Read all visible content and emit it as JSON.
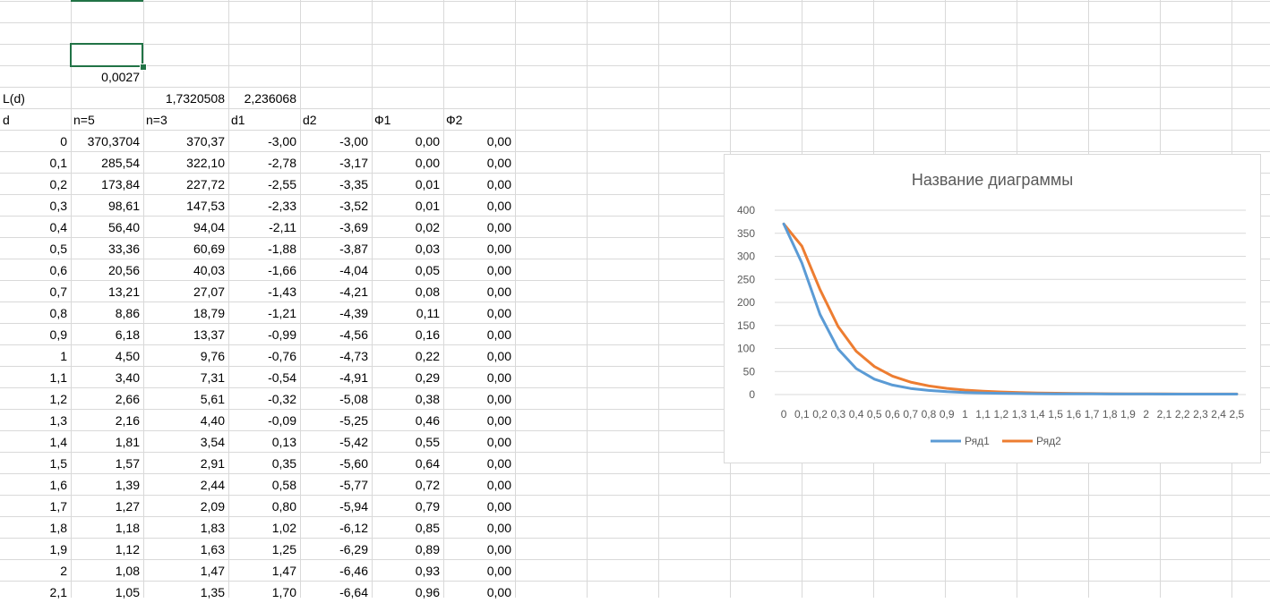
{
  "sheet": {
    "top_cells": [
      {
        "row": 3,
        "col": 1,
        "value": "0,0027",
        "align": "num"
      },
      {
        "row": 4,
        "col": 0,
        "value": "L(d)",
        "align": "txt"
      },
      {
        "row": 4,
        "col": 2,
        "value": "1,7320508",
        "align": "num"
      },
      {
        "row": 4,
        "col": 3,
        "value": "2,236068",
        "align": "num"
      }
    ],
    "headers": [
      "d",
      "n=5",
      "n=3",
      "d1",
      "d2",
      "Ф1",
      "Ф2"
    ],
    "rows": [
      [
        "0",
        "370,3704",
        "370,37",
        "-3,00",
        "-3,00",
        "0,00",
        "0,00"
      ],
      [
        "0,1",
        "285,54",
        "322,10",
        "-2,78",
        "-3,17",
        "0,00",
        "0,00"
      ],
      [
        "0,2",
        "173,84",
        "227,72",
        "-2,55",
        "-3,35",
        "0,01",
        "0,00"
      ],
      [
        "0,3",
        "98,61",
        "147,53",
        "-2,33",
        "-3,52",
        "0,01",
        "0,00"
      ],
      [
        "0,4",
        "56,40",
        "94,04",
        "-2,11",
        "-3,69",
        "0,02",
        "0,00"
      ],
      [
        "0,5",
        "33,36",
        "60,69",
        "-1,88",
        "-3,87",
        "0,03",
        "0,00"
      ],
      [
        "0,6",
        "20,56",
        "40,03",
        "-1,66",
        "-4,04",
        "0,05",
        "0,00"
      ],
      [
        "0,7",
        "13,21",
        "27,07",
        "-1,43",
        "-4,21",
        "0,08",
        "0,00"
      ],
      [
        "0,8",
        "8,86",
        "18,79",
        "-1,21",
        "-4,39",
        "0,11",
        "0,00"
      ],
      [
        "0,9",
        "6,18",
        "13,37",
        "-0,99",
        "-4,56",
        "0,16",
        "0,00"
      ],
      [
        "1",
        "4,50",
        "9,76",
        "-0,76",
        "-4,73",
        "0,22",
        "0,00"
      ],
      [
        "1,1",
        "3,40",
        "7,31",
        "-0,54",
        "-4,91",
        "0,29",
        "0,00"
      ],
      [
        "1,2",
        "2,66",
        "5,61",
        "-0,32",
        "-5,08",
        "0,38",
        "0,00"
      ],
      [
        "1,3",
        "2,16",
        "4,40",
        "-0,09",
        "-5,25",
        "0,46",
        "0,00"
      ],
      [
        "1,4",
        "1,81",
        "3,54",
        "0,13",
        "-5,42",
        "0,55",
        "0,00"
      ],
      [
        "1,5",
        "1,57",
        "2,91",
        "0,35",
        "-5,60",
        "0,64",
        "0,00"
      ],
      [
        "1,6",
        "1,39",
        "2,44",
        "0,58",
        "-5,77",
        "0,72",
        "0,00"
      ],
      [
        "1,7",
        "1,27",
        "2,09",
        "0,80",
        "-5,94",
        "0,79",
        "0,00"
      ],
      [
        "1,8",
        "1,18",
        "1,83",
        "1,02",
        "-6,12",
        "0,85",
        "0,00"
      ],
      [
        "1,9",
        "1,12",
        "1,63",
        "1,25",
        "-6,29",
        "0,89",
        "0,00"
      ],
      [
        "2",
        "1,08",
        "1,47",
        "1,47",
        "-6,46",
        "0,93",
        "0,00"
      ],
      [
        "2,1",
        "1,05",
        "1,35",
        "1,70",
        "-6,64",
        "0,96",
        "0,00"
      ]
    ]
  },
  "colors": {
    "grid": "#d9d9d9",
    "selection": "#217346",
    "series1": "#5b9bd5",
    "series2": "#ed7d31",
    "chart_gridline": "#d9d9d9",
    "chart_text": "#595959"
  },
  "chart_data": {
    "type": "line",
    "title": "Название диаграммы",
    "xlabel": "",
    "ylabel": "",
    "categories": [
      "0",
      "0,1",
      "0,2",
      "0,3",
      "0,4",
      "0,5",
      "0,6",
      "0,7",
      "0,8",
      "0,9",
      "1",
      "1,1",
      "1,2",
      "1,3",
      "1,4",
      "1,5",
      "1,6",
      "1,7",
      "1,8",
      "1,9",
      "2",
      "2,1",
      "2,2",
      "2,3",
      "2,4",
      "2,5"
    ],
    "series": [
      {
        "name": "Ряд1",
        "values": [
          370.37,
          285.54,
          173.84,
          98.61,
          56.4,
          33.36,
          20.56,
          13.21,
          8.86,
          6.18,
          4.5,
          3.4,
          2.66,
          2.16,
          1.81,
          1.57,
          1.39,
          1.27,
          1.18,
          1.12,
          1.08,
          1.05,
          1.03,
          1.02,
          1.01,
          1.01
        ]
      },
      {
        "name": "Ряд2",
        "values": [
          370.37,
          322.1,
          227.72,
          147.53,
          94.04,
          60.69,
          40.03,
          27.07,
          18.79,
          13.37,
          9.76,
          7.31,
          5.61,
          4.4,
          3.54,
          2.91,
          2.44,
          2.09,
          1.83,
          1.63,
          1.47,
          1.35,
          1.26,
          1.19,
          1.14,
          1.1
        ]
      }
    ],
    "ylim": [
      0,
      400
    ],
    "yticks": [
      "0",
      "50",
      "100",
      "150",
      "200",
      "250",
      "300",
      "350",
      "400"
    ],
    "grid": true,
    "legend": "bottom"
  }
}
